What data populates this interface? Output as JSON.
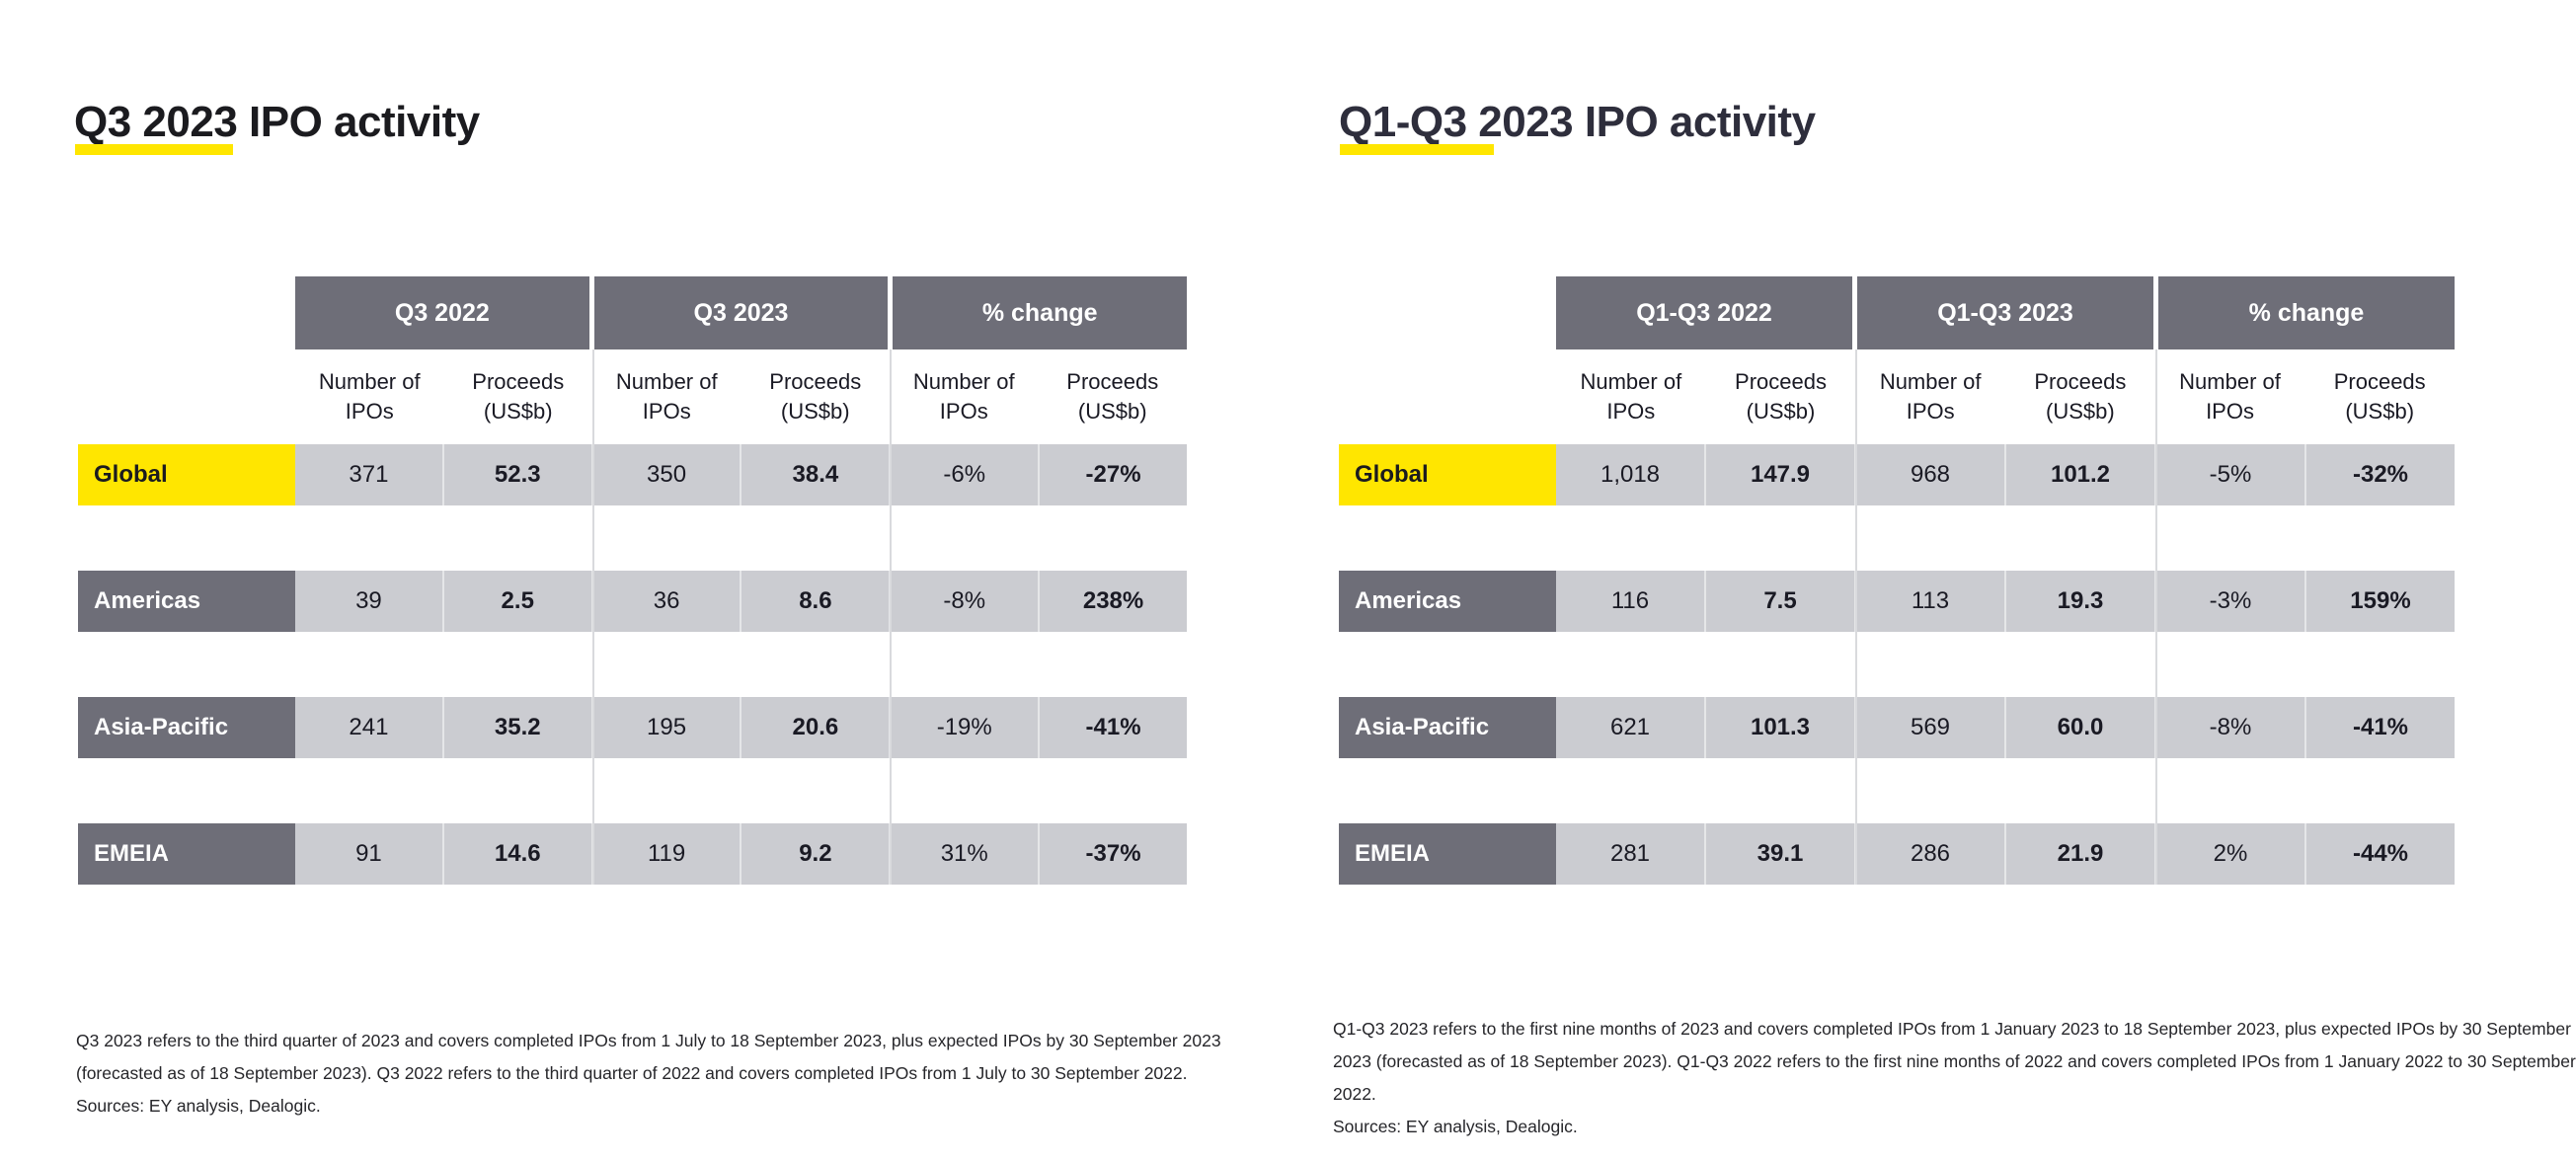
{
  "colors": {
    "accent_yellow": "#FFE600",
    "header_gray": "#6E6E78",
    "cell_gray": "#CBCCD1",
    "title_left": "#1B1B1F",
    "title_right": "#2E2E3C"
  },
  "panels": {
    "left": {
      "title": "Q3 2023 IPO activity",
      "bands": [
        "Q3 2022",
        "Q3 2023",
        "% change"
      ],
      "subhead": {
        "num": "Number of\nIPOs",
        "proceeds": "Proceeds\n(US$b)"
      },
      "rows": [
        {
          "label": "Global",
          "values": [
            "371",
            "52.3",
            "350",
            "38.4",
            "-6%",
            "-27%"
          ]
        },
        {
          "label": "Americas",
          "values": [
            "39",
            "2.5",
            "36",
            "8.6",
            "-8%",
            "238%"
          ]
        },
        {
          "label": "Asia-Pacific",
          "values": [
            "241",
            "35.2",
            "195",
            "20.6",
            "-19%",
            "-41%"
          ]
        },
        {
          "label": "EMEIA",
          "values": [
            "91",
            "14.6",
            "119",
            "9.2",
            "31%",
            "-37%"
          ]
        }
      ],
      "footnote_lines": [
        "Q3 2023 refers to the third quarter of 2023 and covers completed IPOs from 1 July to 18 September 2023, plus expected IPOs by 30 September 2023",
        "(forecasted as of 18 September 2023). Q3 2022 refers to the third quarter of 2022 and covers completed IPOs from 1 July to 30 September 2022.",
        "Sources: EY analysis, Dealogic."
      ]
    },
    "right": {
      "title": "Q1-Q3 2023 IPO activity",
      "bands": [
        "Q1-Q3 2022",
        "Q1-Q3 2023",
        "% change"
      ],
      "subhead": {
        "num": "Number of\nIPOs",
        "proceeds": "Proceeds\n(US$b)"
      },
      "rows": [
        {
          "label": "Global",
          "values": [
            "1,018",
            "147.9",
            "968",
            "101.2",
            "-5%",
            "-32%"
          ]
        },
        {
          "label": "Americas",
          "values": [
            "116",
            "7.5",
            "113",
            "19.3",
            "-3%",
            "159%"
          ]
        },
        {
          "label": "Asia-Pacific",
          "values": [
            "621",
            "101.3",
            "569",
            "60.0",
            "-8%",
            "-41%"
          ]
        },
        {
          "label": "EMEIA",
          "values": [
            "281",
            "39.1",
            "286",
            "21.9",
            "2%",
            "-44%"
          ]
        }
      ],
      "footnote_lines": [
        "Q1-Q3 2023 refers to the first nine months of 2023 and covers completed IPOs from 1 January 2023 to 18 September 2023, plus expected IPOs by 30 September",
        "2023 (forecasted as of 18 September 2023). Q1-Q3 2022 refers to the first nine months of 2022 and covers completed IPOs from 1 January 2022 to 30 September",
        "2022.",
        "Sources: EY analysis, Dealogic."
      ]
    }
  }
}
